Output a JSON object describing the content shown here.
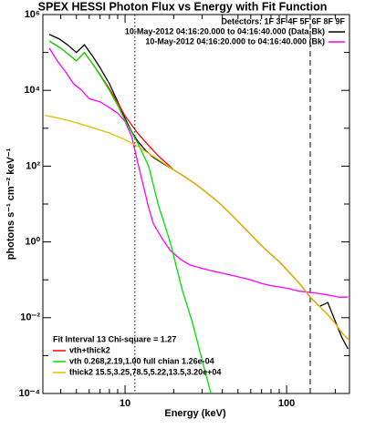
{
  "chart_data": {
    "type": "line",
    "title": "SPEX HESSI Photon Flux vs Energy with Fit Function",
    "xlabel": "Energy (keV)",
    "ylabel": "photons s⁻¹ cm⁻² keV⁻¹",
    "xscale": "log",
    "yscale": "log",
    "xlim": [
      3.1,
      245
    ],
    "ylim": [
      0.0001,
      1000000
    ],
    "xticks": [
      10,
      100
    ],
    "xminor_ticks": [
      4,
      5,
      6,
      7,
      8,
      9,
      20,
      30,
      40,
      50,
      60,
      70,
      80,
      90,
      200
    ],
    "yticks": [
      {
        "value": 0.0001,
        "label": "10⁻⁴"
      },
      {
        "value": 0.01,
        "label": "10⁻²"
      },
      {
        "value": 1,
        "label": "10⁰"
      },
      {
        "value": 100,
        "label": "10²"
      },
      {
        "value": 10000,
        "label": "10⁴"
      },
      {
        "value": 1000000,
        "label": "10⁶"
      }
    ],
    "yminor_ticks": [
      0.001,
      0.1,
      10,
      1000,
      100000
    ],
    "vlines": [
      {
        "value": 11.5,
        "style": "dotted",
        "color": "#000000"
      },
      {
        "value": 140,
        "style": "dashed",
        "color": "#000000"
      }
    ],
    "legend_title": "Detectors: 1F 3F 4F 5F 6F 8F 9F",
    "fit_annotation": "Fit Interval 13   Chi-square = 1.27",
    "series": [
      {
        "name": "10-May-2012 04:16:20.000 to 04:16:40.000 (Data-Bk)",
        "color": "#000000",
        "legend": "upper right",
        "x": [
          3.4,
          3.9,
          4.4,
          5.0,
          5.6,
          6.3,
          7.0,
          8.0,
          9.0,
          10,
          11,
          12,
          13.5,
          15,
          17,
          20,
          23,
          27,
          32,
          38,
          45,
          55,
          65,
          75,
          90,
          105,
          120,
          140,
          160,
          180,
          200,
          220,
          240
        ],
        "values": [
          300000,
          230000,
          160000,
          100000,
          160000,
          80000,
          40000,
          15000,
          5000,
          1800,
          800,
          450,
          250,
          170,
          120,
          80,
          55,
          35,
          20,
          11,
          5.5,
          2.3,
          1.1,
          0.6,
          0.3,
          0.15,
          0.08,
          0.035,
          0.02,
          0.025,
          0.008,
          0.003,
          0.0015
        ]
      },
      {
        "name": "10-May-2012 04:16:20.000 to 04:16:40.000 (Bk)",
        "color": "#ff00ff",
        "legend": "upper right",
        "x": [
          3.4,
          3.8,
          4.3,
          4.8,
          5.4,
          6.0,
          7.0,
          8.0,
          9.0,
          10,
          11,
          12,
          13,
          14,
          15,
          17,
          19,
          22,
          25,
          30,
          35,
          40,
          50,
          60,
          70,
          80,
          100,
          120,
          150,
          180,
          210,
          240
        ],
        "values": [
          130000,
          60000,
          30000,
          15000,
          10000,
          6000,
          5000,
          3500,
          2500,
          1500,
          600,
          120,
          30,
          8,
          3,
          1.2,
          0.6,
          0.35,
          0.25,
          0.2,
          0.17,
          0.15,
          0.12,
          0.1,
          0.08,
          0.07,
          0.06,
          0.05,
          0.045,
          0.04,
          0.035,
          0.035
        ]
      },
      {
        "name": "vth+thick2",
        "color": "#ff0000",
        "legend": "lower left",
        "x": [
          3.4,
          4,
          5,
          5.6,
          6.3,
          7,
          8,
          9,
          10,
          12,
          14,
          16,
          20,
          23,
          27,
          32,
          38,
          45,
          55,
          65,
          75,
          90,
          105,
          120,
          140,
          160,
          180,
          200,
          220,
          245
        ],
        "values": [
          200000,
          130000,
          60000,
          100000,
          50000,
          26000,
          11000,
          4700,
          2100,
          730,
          350,
          190,
          80,
          55,
          35,
          20,
          11,
          5.5,
          2.3,
          1.1,
          0.6,
          0.3,
          0.15,
          0.08,
          0.035,
          0.02,
          0.012,
          0.007,
          0.004,
          0.0025
        ]
      },
      {
        "name": "vth 0.268,2.19,1.00  full chian 1.26e-04",
        "color": "#00e000",
        "legend": "lower left",
        "x": [
          3.4,
          4,
          5,
          5.6,
          6.3,
          7,
          8,
          9,
          10,
          12,
          14,
          16,
          19,
          22.7,
          26,
          29.5,
          34
        ],
        "values": [
          200000,
          130000,
          60000,
          100000,
          50000,
          25000,
          10000,
          4000,
          1600,
          400,
          100,
          10,
          1,
          0.05,
          0.008,
          0.001,
          0.0001
        ]
      },
      {
        "name": "thick2 15.5,3.25,78.5,5.22,13.5,3.20e+04",
        "color": "#e0c000",
        "legend": "lower left",
        "x": [
          3.2,
          4,
          5,
          6,
          7,
          8,
          10,
          12,
          15,
          20,
          23,
          27,
          32,
          38,
          45,
          55,
          65,
          75,
          90,
          105,
          120,
          140,
          160,
          180,
          200,
          220,
          245
        ],
        "values": [
          2200,
          1800,
          1400,
          1100,
          900,
          750,
          500,
          330,
          180,
          80,
          55,
          35,
          20,
          11,
          5.5,
          2.3,
          1.1,
          0.6,
          0.3,
          0.15,
          0.08,
          0.035,
          0.02,
          0.012,
          0.007,
          0.004,
          0.0025
        ]
      }
    ]
  }
}
